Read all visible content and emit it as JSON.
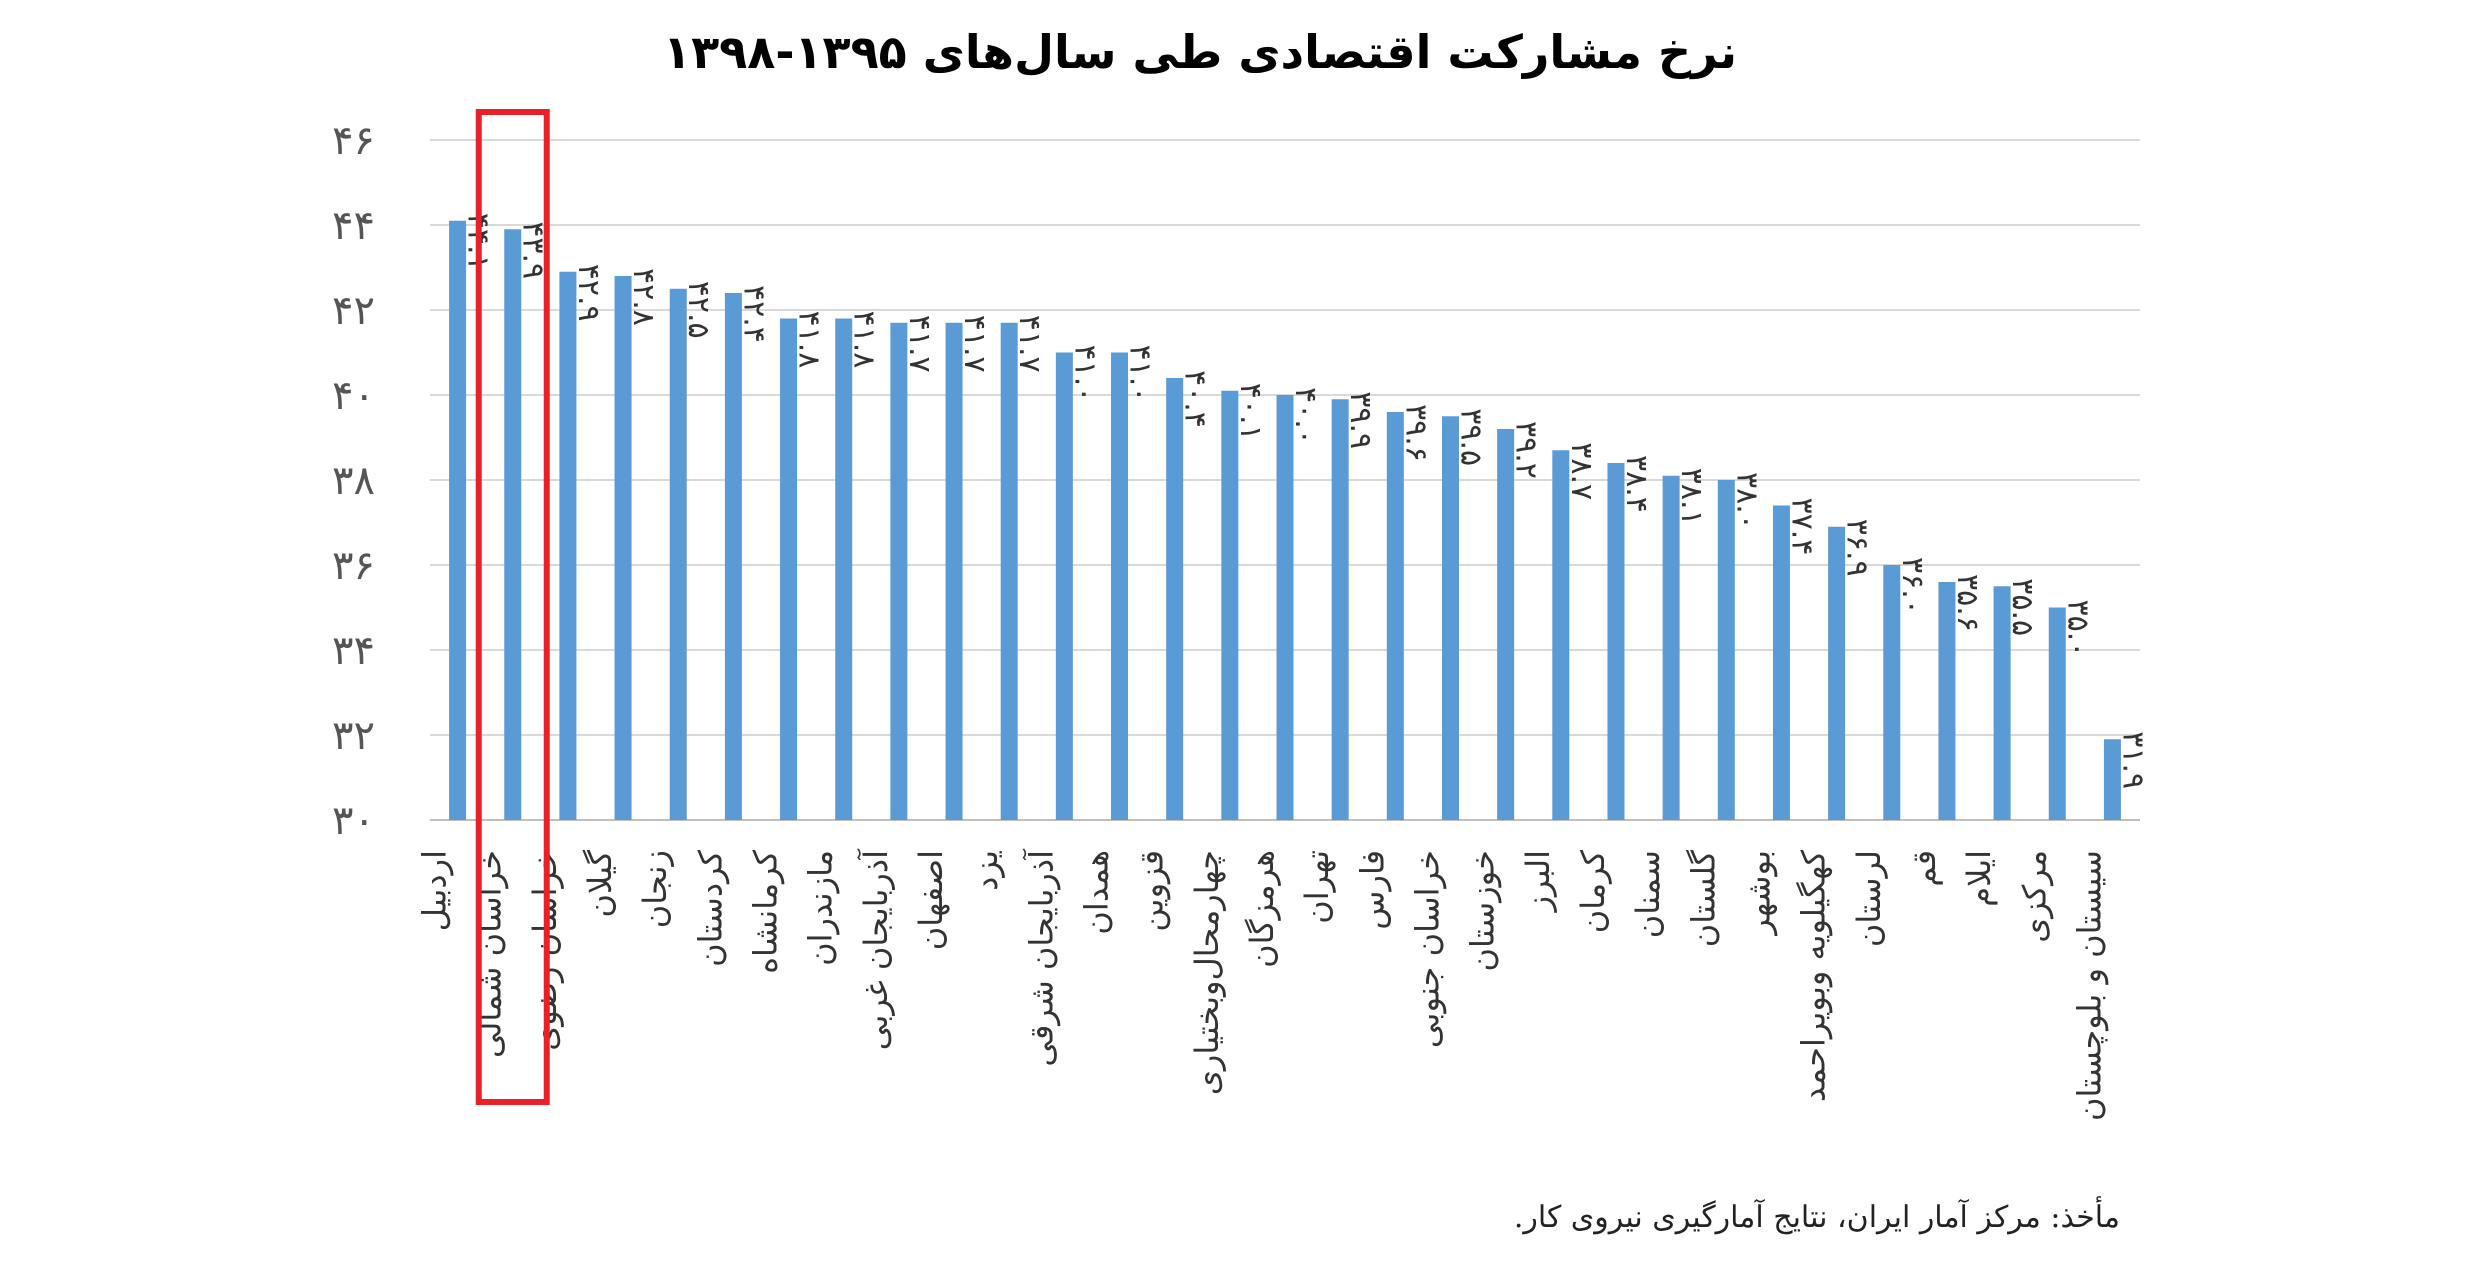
{
  "chart_data": {
    "type": "bar",
    "title": "نرخ مشارکت اقتصادی طی سال‌های ۱۳۹۵-۱۳۹۸",
    "xlabel": "",
    "ylabel": "",
    "ylim": [
      30,
      46
    ],
    "yticks": [
      30,
      32,
      34,
      36,
      38,
      40,
      42,
      44,
      46
    ],
    "ytick_labels": [
      "۳۰",
      "۳۲",
      "۳۴",
      "۳۶",
      "۳۸",
      "۴۰",
      "۴۲",
      "۴۴",
      "۴۶"
    ],
    "grid": true,
    "bar_color": "#5b9bd5",
    "highlight_color": "#e8202a",
    "highlight_category": "خراسان شمالی",
    "categories": [
      "اردبیل",
      "خراسان شمالی",
      "خراسان رضوی",
      "گیلان",
      "زنجان",
      "کردستان",
      "کرمانشاه",
      "مازندران",
      "آذربایجان غربی",
      "اصفهان",
      "یزد",
      "آذربایجان شرقی",
      "همدان",
      "قزوین",
      "چهارمحال‌وبختیاری",
      "هرمزگان",
      "تهران",
      "فارس",
      "خراسان جنوبی",
      "خوزستان",
      "البرز",
      "کرمان",
      "سمنان",
      "گلستان",
      "بوشهر",
      "کهگیلویه وبویراحمد",
      "لرستان",
      "قم",
      "ایلام",
      "مرکزی",
      "سیستان و بلوچستان"
    ],
    "values": [
      44.1,
      43.9,
      42.9,
      42.8,
      42.5,
      42.4,
      41.8,
      41.8,
      41.7,
      41.7,
      41.7,
      41.0,
      41.0,
      40.4,
      40.1,
      40.0,
      39.9,
      39.6,
      39.5,
      39.2,
      38.7,
      38.4,
      38.1,
      38.0,
      37.4,
      36.9,
      36.0,
      35.6,
      35.5,
      35.0,
      31.9
    ],
    "value_labels": [
      "۴۴.۱",
      "۴۳.۹",
      "۴۲.۹",
      "۴۲.۸",
      "۴۲.۵",
      "۴۲.۴",
      "۴۱.۸",
      "۴۱.۸",
      "۴۱.۷",
      "۴۱.۷",
      "۴۱.۷",
      "۴۱.۰",
      "۴۱.۰",
      "۴۰.۴",
      "۴۰.۱",
      "۴۰.۰",
      "۳۹.۹",
      "۳۹.۶",
      "۳۹.۵",
      "۳۹.۲",
      "۳۸.۷",
      "۳۸.۴",
      "۳۸.۱",
      "۳۸.۰",
      "۳۷.۴",
      "۳۶.۹",
      "۳۶.۰",
      "۳۵.۶",
      "۳۵.۵",
      "۳۵.۰",
      "۳۱.۹"
    ]
  },
  "source": "مأخذ: مرکز آمار ایران، نتایج آمارگیری نیروی کار."
}
